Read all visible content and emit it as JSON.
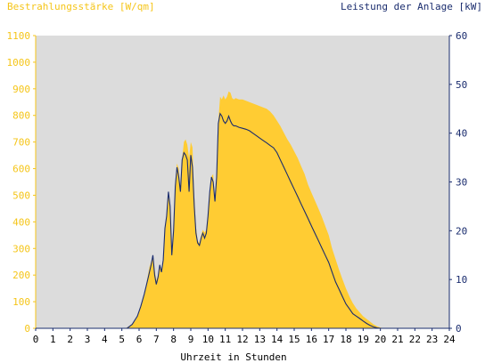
{
  "chart_data": {
    "type": "area",
    "left_axis_title": "Bestrahlungsstärke [W/qm]",
    "right_axis_title": "Leistung der Anlage [kW]",
    "xlabel": "Uhrzeit in Stunden",
    "xlim": [
      0,
      24
    ],
    "ylim_left": [
      0,
      1100
    ],
    "ylim_right": [
      0,
      60
    ],
    "x_ticks": [
      "0",
      "1",
      "2",
      "3",
      "4",
      "5",
      "6",
      "7",
      "8",
      "9",
      "10",
      "11",
      "12",
      "13",
      "14",
      "15",
      "16",
      "17",
      "18",
      "19",
      "20",
      "21",
      "22",
      "23",
      "24"
    ],
    "y_left_ticks": [
      "0",
      "100",
      "200",
      "300",
      "400",
      "500",
      "600",
      "700",
      "800",
      "900",
      "1000",
      "1100"
    ],
    "y_right_ticks": [
      "0",
      "10",
      "20",
      "30",
      "40",
      "50",
      "60"
    ],
    "grid": false,
    "colors": {
      "plot_background": "#dcdcdc",
      "irradiance_fill": "#ffcc33",
      "power_line": "#1a2c6e",
      "left_axis": "#f5c518",
      "right_axis": "#1a2c6e"
    },
    "series": [
      {
        "name": "Bestrahlungsstärke [W/qm]",
        "axis": "left",
        "style": "area",
        "x": [
          0,
          5.2,
          5.5,
          5.8,
          6.0,
          6.2,
          6.4,
          6.6,
          6.8,
          6.9,
          7.0,
          7.1,
          7.2,
          7.3,
          7.4,
          7.5,
          7.6,
          7.7,
          7.8,
          7.9,
          8.0,
          8.1,
          8.2,
          8.3,
          8.4,
          8.5,
          8.6,
          8.7,
          8.8,
          8.9,
          9.0,
          9.1,
          9.2,
          9.3,
          9.4,
          9.5,
          9.6,
          9.7,
          9.8,
          9.9,
          10.0,
          10.1,
          10.2,
          10.3,
          10.4,
          10.5,
          10.6,
          10.7,
          10.8,
          10.9,
          11.0,
          11.1,
          11.2,
          11.3,
          11.4,
          11.5,
          11.6,
          11.8,
          12.0,
          12.2,
          12.4,
          12.6,
          12.8,
          13.0,
          13.2,
          13.4,
          13.6,
          13.8,
          14.0,
          14.2,
          14.4,
          14.6,
          14.8,
          15.0,
          15.2,
          15.4,
          15.6,
          15.8,
          16.0,
          16.2,
          16.4,
          16.6,
          16.8,
          17.0,
          17.2,
          17.4,
          17.6,
          17.8,
          18.0,
          18.2,
          18.4,
          18.6,
          18.8,
          19.0,
          19.2,
          19.4,
          19.6,
          19.8,
          20.0,
          20.2,
          24
        ],
        "values": [
          0,
          0,
          10,
          30,
          60,
          100,
          160,
          230,
          270,
          220,
          180,
          200,
          240,
          220,
          260,
          380,
          420,
          500,
          460,
          280,
          380,
          550,
          620,
          600,
          520,
          640,
          700,
          710,
          690,
          640,
          700,
          680,
          500,
          380,
          330,
          320,
          350,
          370,
          360,
          370,
          430,
          520,
          570,
          580,
          480,
          560,
          780,
          870,
          860,
          875,
          860,
          870,
          890,
          885,
          865,
          860,
          865,
          860,
          860,
          855,
          850,
          845,
          840,
          835,
          830,
          825,
          815,
          800,
          780,
          760,
          735,
          710,
          690,
          665,
          640,
          610,
          580,
          540,
          510,
          480,
          450,
          420,
          385,
          350,
          300,
          260,
          220,
          185,
          150,
          120,
          95,
          75,
          60,
          45,
          35,
          25,
          15,
          8,
          3,
          0,
          0
        ]
      },
      {
        "name": "Leistung der Anlage [kW]",
        "axis": "right",
        "style": "line",
        "x": [
          0,
          5.3,
          5.6,
          5.9,
          6.1,
          6.3,
          6.5,
          6.7,
          6.8,
          6.9,
          7.0,
          7.1,
          7.2,
          7.3,
          7.4,
          7.5,
          7.6,
          7.7,
          7.8,
          7.9,
          8.0,
          8.1,
          8.2,
          8.3,
          8.4,
          8.5,
          8.6,
          8.7,
          8.8,
          8.9,
          9.0,
          9.1,
          9.2,
          9.3,
          9.4,
          9.5,
          9.6,
          9.7,
          9.8,
          9.9,
          10.0,
          10.1,
          10.2,
          10.3,
          10.4,
          10.5,
          10.6,
          10.7,
          10.8,
          10.9,
          11.0,
          11.1,
          11.2,
          11.3,
          11.4,
          11.5,
          11.6,
          11.8,
          12.0,
          12.2,
          12.4,
          12.6,
          12.8,
          13.0,
          13.2,
          13.4,
          13.6,
          13.8,
          14.0,
          14.2,
          14.4,
          14.6,
          14.8,
          15.0,
          15.2,
          15.4,
          15.6,
          15.8,
          16.0,
          16.2,
          16.4,
          16.6,
          16.8,
          17.0,
          17.2,
          17.4,
          17.6,
          17.8,
          18.0,
          18.2,
          18.4,
          18.6,
          18.8,
          19.0,
          19.2,
          19.4,
          19.6,
          19.8,
          20.0,
          20.2,
          24
        ],
        "values": [
          0,
          0,
          0.8,
          2.5,
          4.5,
          7,
          10,
          13,
          15,
          11,
          9,
          10.5,
          13,
          11.5,
          14,
          20.5,
          23,
          28,
          25,
          15,
          20,
          29,
          33,
          31,
          28,
          34.5,
          36,
          35.5,
          34.5,
          28,
          35.5,
          33,
          25,
          19.5,
          17.5,
          17,
          18.5,
          19.5,
          18.5,
          19.5,
          23,
          28,
          31,
          30,
          26,
          31,
          42,
          44,
          43.5,
          42.5,
          42,
          42.5,
          43.5,
          42.5,
          41.8,
          41.5,
          41.5,
          41.2,
          41,
          40.8,
          40.5,
          40,
          39.5,
          39,
          38.5,
          38,
          37.5,
          37,
          36,
          34.5,
          33,
          31.5,
          30,
          28.5,
          27,
          25.5,
          24,
          22.5,
          21,
          19.5,
          18,
          16.5,
          15,
          13.5,
          11.5,
          9.5,
          8,
          6.5,
          5,
          4,
          3,
          2.5,
          2,
          1.5,
          1,
          0.6,
          0.3,
          0.1,
          0,
          0,
          0
        ]
      }
    ]
  }
}
